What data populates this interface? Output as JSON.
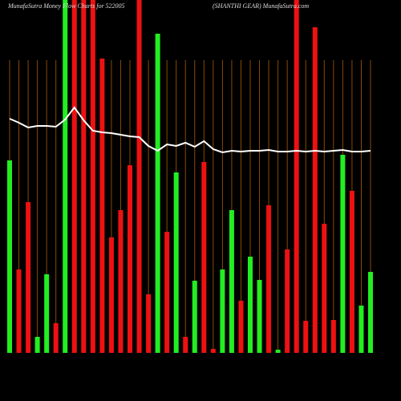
{
  "chart_data": {
    "type": "bar",
    "title": "MunafaSutra  Money Flow Charts for 522005",
    "subtitle": "(SHANTHI GEAR) MunafaSutra.com",
    "categories": [
      null,
      null,
      null,
      null,
      null,
      null,
      null,
      null,
      null,
      null,
      null,
      null,
      null,
      null,
      null,
      null,
      null,
      null,
      null,
      null,
      null,
      null,
      null,
      null,
      null,
      null,
      null,
      null,
      null,
      null,
      null,
      null,
      null,
      null,
      null,
      null,
      null,
      null,
      null,
      null
    ],
    "ylim": [
      0,
      440
    ],
    "grid": true,
    "grid_color": "#8a4a00",
    "series": [
      {
        "type": "bar",
        "values": [
          240,
          104,
          188,
          20,
          98,
          37,
          440,
          440,
          440,
          440,
          367,
          144,
          178,
          234,
          440,
          73,
          398,
          151,
          225,
          20,
          90,
          238,
          5,
          104,
          178,
          65,
          120,
          91,
          184,
          4,
          129,
          440,
          40,
          406,
          161,
          41,
          247,
          202,
          59,
          101
        ],
        "colors": [
          "#22ee22",
          "#ee1111",
          "#ee1111",
          "#22ee22",
          "#22ee22",
          "#ee1111",
          "#22ee22",
          "#ee1111",
          "#ee1111",
          "#ee1111",
          "#ee1111",
          "#ee1111",
          "#ee1111",
          "#ee1111",
          "#ee1111",
          "#ee1111",
          "#22ee22",
          "#ee1111",
          "#22ee22",
          "#ee1111",
          "#22ee22",
          "#ee1111",
          "#ee1111",
          "#22ee22",
          "#22ee22",
          "#ee1111",
          "#22ee22",
          "#22ee22",
          "#ee1111",
          "#22ee22",
          "#ee1111",
          "#ee1111",
          "#ee1111",
          "#ee1111",
          "#ee1111",
          "#ee1111",
          "#22ee22",
          "#ee1111",
          "#22ee22",
          "#22ee22"
        ]
      },
      {
        "type": "line",
        "color": "#ffffff",
        "values": [
          292,
          287,
          281,
          283,
          283,
          282,
          291,
          306,
          290,
          277,
          275,
          274,
          272,
          270,
          269,
          258,
          252,
          260,
          258,
          262,
          257,
          264,
          254,
          250,
          252,
          251,
          252,
          252,
          253,
          251,
          251,
          252,
          251,
          252,
          251,
          252,
          253,
          251,
          251,
          252
        ]
      }
    ]
  }
}
